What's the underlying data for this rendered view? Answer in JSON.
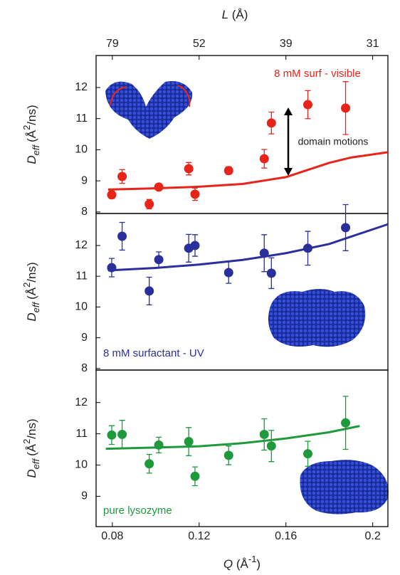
{
  "chart_data": [
    {
      "type": "scatter",
      "x2label": [
        "L",
        " (Å)"
      ],
      "x2ticks": [
        {
          "value": 78.54,
          "label": "79"
        },
        {
          "value": 52.36,
          "label": "52"
        },
        {
          "value": 39.27,
          "label": "39"
        },
        {
          "value": 31.42,
          "label": "31"
        }
      ],
      "ylabel": [
        "D",
        "eff",
        "(Å",
        "2",
        "/ns)"
      ],
      "xlim": [
        0.0725,
        0.207
      ],
      "ylim": [
        7.95,
        13.03
      ],
      "yticks": [
        8,
        9,
        10,
        11,
        12
      ],
      "annotations": [
        "domain motions"
      ],
      "series": [
        {
          "name": "8 mM surf - visible",
          "color": "#e8241a",
          "x": [
            0.0797,
            0.0845,
            0.097,
            0.1014,
            0.1152,
            0.1181,
            0.1336,
            0.15,
            0.1533,
            0.1701,
            0.1875
          ],
          "values": [
            8.55,
            9.14,
            8.25,
            8.8,
            9.39,
            8.57,
            9.33,
            9.71,
            10.86,
            11.45,
            11.34
          ],
          "errors": [
            0.12,
            0.22,
            0.15,
            0.1,
            0.2,
            0.2,
            0.12,
            0.3,
            0.35,
            0.45,
            0.85
          ]
        },
        {
          "color": "#e8241a",
          "x": [
            0.078,
            0.1,
            0.12,
            0.14,
            0.16,
            0.17,
            0.18,
            0.19,
            0.207
          ],
          "values": [
            8.72,
            8.76,
            8.81,
            8.9,
            9.12,
            9.35,
            9.58,
            9.75,
            9.92
          ]
        }
      ]
    },
    {
      "type": "scatter",
      "ylabel": [
        "D",
        "eff",
        "(Å",
        "2",
        "/ns)"
      ],
      "xlim": [
        0.0725,
        0.207
      ],
      "ylim": [
        7.95,
        13.04
      ],
      "yticks": [
        8,
        9,
        10,
        11,
        12
      ],
      "series": [
        {
          "name": "8 mM surfactant - UV",
          "color": "#2b2f9c",
          "x": [
            0.0797,
            0.0845,
            0.097,
            0.1014,
            0.1152,
            0.1181,
            0.1336,
            0.15,
            0.1533,
            0.1701,
            0.1875
          ],
          "values": [
            11.28,
            12.3,
            10.52,
            11.54,
            11.91,
            12.0,
            11.12,
            11.75,
            11.1,
            11.91,
            12.58
          ],
          "errors": [
            0.3,
            0.45,
            0.45,
            0.25,
            0.45,
            0.35,
            0.35,
            0.6,
            0.5,
            0.55,
            0.75
          ]
        },
        {
          "color": "#2b2f9c",
          "x": [
            0.078,
            0.1,
            0.12,
            0.14,
            0.16,
            0.18,
            0.207
          ],
          "values": [
            11.19,
            11.27,
            11.38,
            11.53,
            11.75,
            12.05,
            12.69
          ]
        }
      ]
    },
    {
      "type": "scatter",
      "ylabel": [
        "D",
        "eff",
        "(Å",
        "2",
        "/ns)"
      ],
      "xlabel": [
        "Q",
        " (Å",
        "-1",
        ")"
      ],
      "xlim": [
        0.0725,
        0.207
      ],
      "xticks": [
        0.08,
        0.12,
        0.16,
        0.2
      ],
      "ylim": [
        8.03,
        13.04
      ],
      "yticks": [
        9,
        10,
        11,
        12
      ],
      "series": [
        {
          "name": "pure lysozyme",
          "color": "#1e9a3c",
          "x": [
            0.0797,
            0.0845,
            0.097,
            0.1014,
            0.1152,
            0.1181,
            0.1336,
            0.15,
            0.1533,
            0.1701,
            0.1875
          ],
          "values": [
            10.96,
            10.98,
            10.04,
            10.64,
            10.75,
            9.64,
            10.31,
            10.98,
            10.61,
            10.36,
            11.35
          ],
          "errors": [
            0.3,
            0.45,
            0.3,
            0.25,
            0.45,
            0.3,
            0.3,
            0.5,
            0.5,
            0.4,
            0.85
          ]
        },
        {
          "color": "#1e9a3c",
          "x": [
            0.077,
            0.1,
            0.12,
            0.14,
            0.16,
            0.18,
            0.194
          ],
          "values": [
            10.52,
            10.56,
            10.6,
            10.7,
            10.85,
            11.05,
            11.25
          ]
        }
      ]
    }
  ]
}
